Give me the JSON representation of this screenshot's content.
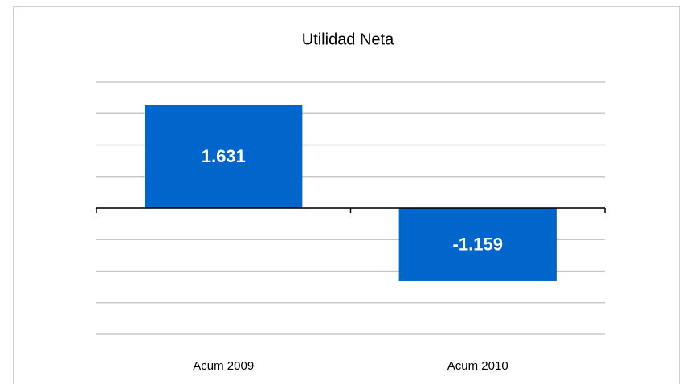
{
  "chart_data": {
    "type": "bar",
    "title": "Utilidad Neta",
    "categories": [
      "Acum 2009",
      "Acum 2010"
    ],
    "values": [
      1631,
      -1159
    ],
    "value_labels": [
      "1.631",
      "-1.159"
    ],
    "color": "#0066cc",
    "ylim": [
      -2000,
      2000
    ],
    "yticks": [
      -2000,
      -1500,
      -1000,
      -500,
      0,
      500,
      1000,
      1500,
      2000
    ],
    "grid": true
  }
}
